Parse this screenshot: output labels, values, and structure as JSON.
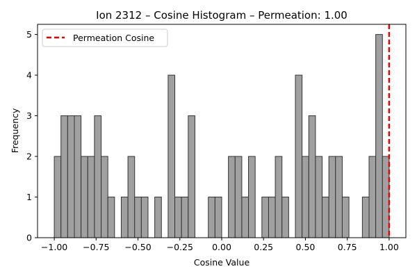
{
  "chart_data": {
    "type": "bar",
    "title": "Ion 2312 – Cosine Histogram – Permeation: 1.00",
    "xlabel": "Cosine Value",
    "ylabel": "Frequency",
    "xlim": [
      -1.1,
      1.1
    ],
    "ylim": [
      0,
      5.25
    ],
    "bin_edges_start": -1.0,
    "bin_width": 0.04,
    "values": [
      2,
      3,
      3,
      3,
      2,
      2,
      3,
      2,
      1,
      0,
      1,
      2,
      1,
      1,
      0,
      1,
      0,
      4,
      1,
      1,
      3,
      0,
      0,
      1,
      1,
      0,
      2,
      2,
      1,
      2,
      0,
      1,
      1,
      2,
      1,
      0,
      4,
      2,
      3,
      2,
      1,
      2,
      2,
      1,
      0,
      0,
      1,
      2,
      5,
      2
    ],
    "xticks": [
      -1.0,
      -0.75,
      -0.5,
      -0.25,
      0.0,
      0.25,
      0.5,
      0.75,
      1.0
    ],
    "xtick_labels": [
      "−1.00",
      "−0.75",
      "−0.50",
      "−0.25",
      "0.00",
      "0.25",
      "0.50",
      "0.75",
      "1.00"
    ],
    "yticks": [
      0,
      1,
      2,
      3,
      4,
      5
    ],
    "ytick_labels": [
      "0",
      "1",
      "2",
      "3",
      "4",
      "5"
    ],
    "bar_color": "#a0a0a0",
    "bar_edge_color": "#333333",
    "reference_line": {
      "x": 1.0,
      "label": "Permeation Cosine",
      "color": "#ee0000",
      "style": "dashed"
    },
    "legend_position": "upper-left",
    "grid": false
  }
}
